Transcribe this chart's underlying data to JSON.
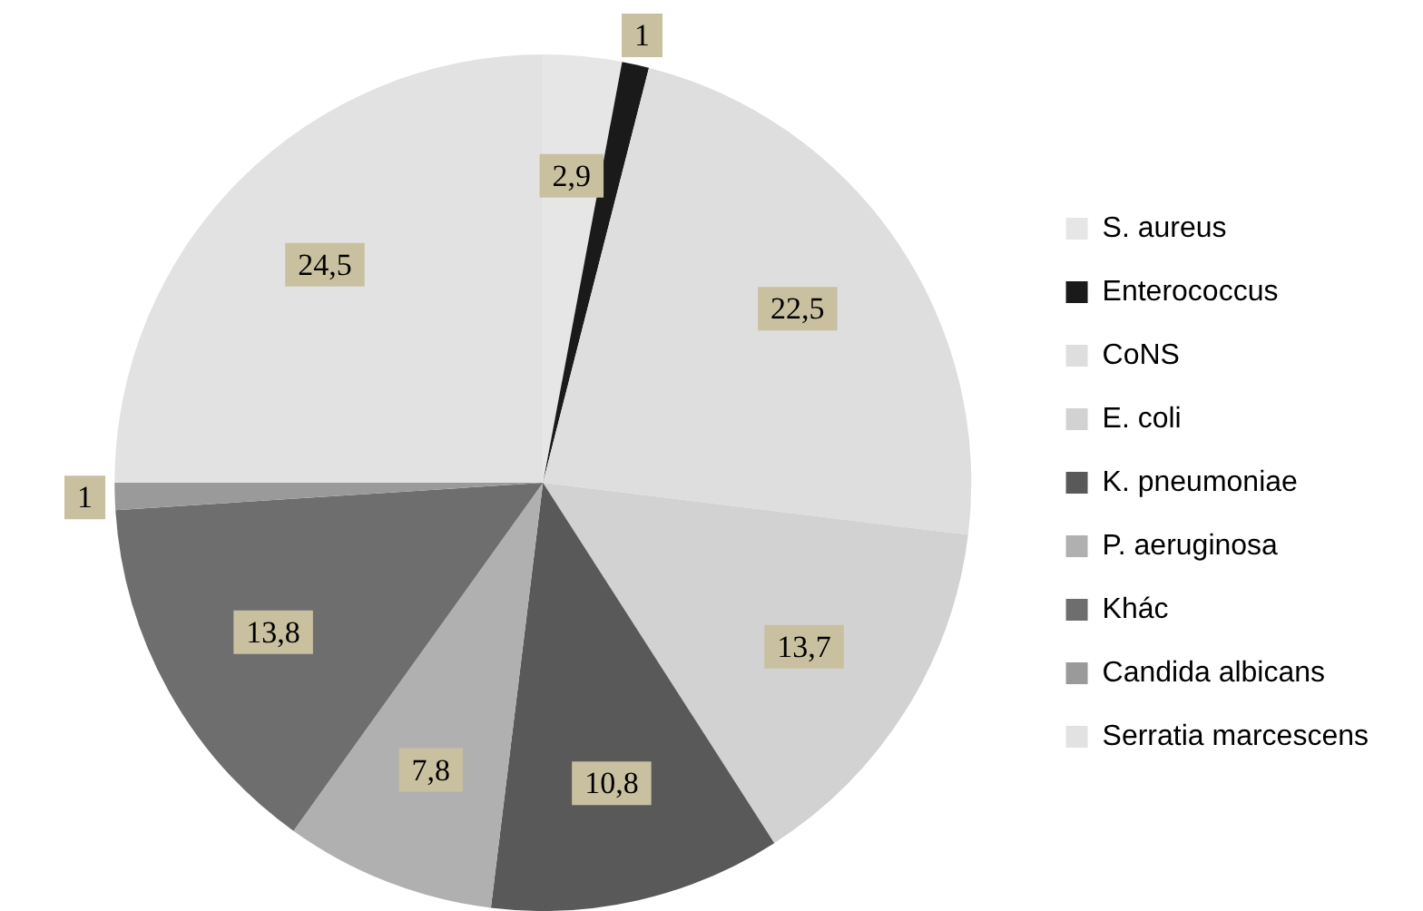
{
  "chart_data": {
    "type": "pie",
    "categories": [
      "S. aureus",
      "Enterococcus",
      "CoNS",
      "E. coli",
      "K. pneumoniae",
      "P. aeruginosa",
      "Khác",
      "Candida albicans",
      "Serratia marcescens"
    ],
    "values": [
      2.9,
      1,
      22.5,
      13.7,
      10.8,
      7.8,
      13.8,
      1,
      24.5
    ],
    "value_labels": [
      "2,9",
      "1",
      "22,5",
      "13,7",
      "10,8",
      "7,8",
      "13,8",
      "1",
      "24,5"
    ],
    "colors": [
      "#e6e6e6",
      "#1a1a1a",
      "#dedede",
      "#d2d2d2",
      "#595959",
      "#b0b0b0",
      "#6e6e6e",
      "#9a9a9a",
      "#e2e2e2"
    ],
    "legend": "right"
  }
}
